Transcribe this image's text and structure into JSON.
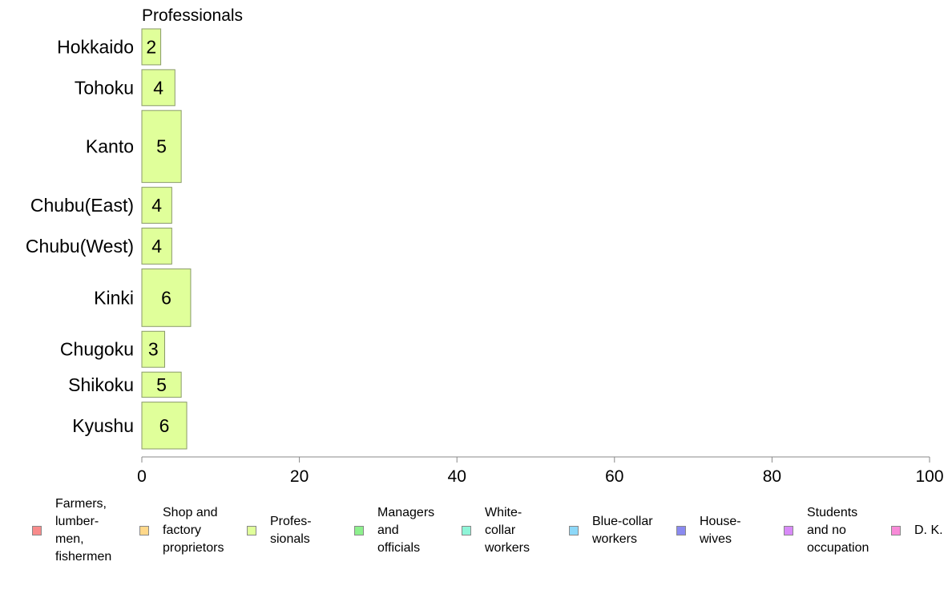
{
  "chart_data": {
    "type": "bar",
    "orientation": "horizontal",
    "title": "Professionals",
    "categories": [
      "Hokkaido",
      "Tohoku",
      "Kanto",
      "Chubu(East)",
      "Chubu(West)",
      "Kinki",
      "Chugoku",
      "Shikoku",
      "Kyushu"
    ],
    "series": [
      {
        "name": "Professionals",
        "values": [
          2,
          4,
          5,
          4,
          4,
          6,
          3,
          5,
          6
        ]
      }
    ],
    "bar_display_values": [
      2.4,
      4.2,
      5.0,
      3.8,
      3.8,
      6.2,
      2.9,
      5.0,
      5.7
    ],
    "relative_widths": [
      1,
      1,
      2,
      1,
      1,
      1.6,
      1,
      0.7,
      1.3
    ],
    "xlim": [
      0,
      100
    ],
    "xticks": [
      0,
      20,
      40,
      60,
      80,
      100
    ],
    "xlabel": "",
    "ylabel": "",
    "grid": false,
    "legend_position": "bottom",
    "bar_color": "#e0ff9a",
    "bar_edge_color": "#8a9a6a",
    "axis_color": "#888888"
  },
  "legend": [
    {
      "label": "Farmers,\nlumber-\nmen,\nfishermen",
      "color": "#f88b8b"
    },
    {
      "label": "Shop and\nfactory\nproprietors",
      "color": "#ffd88a"
    },
    {
      "label": "Profes-\nsionals",
      "color": "#e0ff9a"
    },
    {
      "label": "Managers\nand\nofficials",
      "color": "#8df08d"
    },
    {
      "label": "White-\ncollar\nworkers",
      "color": "#8ff5d8"
    },
    {
      "label": "Blue-collar\nworkers",
      "color": "#8dd8f8"
    },
    {
      "label": "House-\nwives",
      "color": "#8a8af0"
    },
    {
      "label": "Students\nand no\noccupation",
      "color": "#d88af8"
    },
    {
      "label": "D. K.",
      "color": "#f88ad8"
    }
  ]
}
